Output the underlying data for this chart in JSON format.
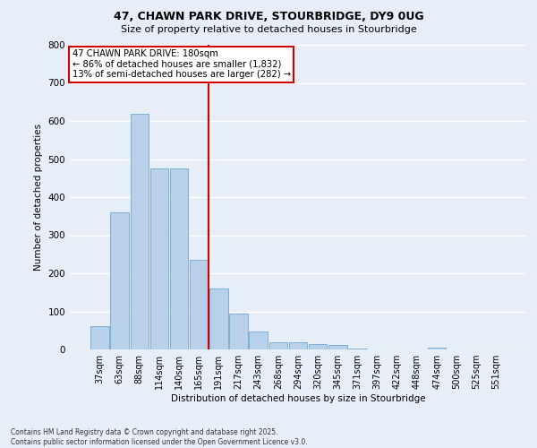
{
  "title_line1": "47, CHAWN PARK DRIVE, STOURBRIDGE, DY9 0UG",
  "title_line2": "Size of property relative to detached houses in Stourbridge",
  "xlabel": "Distribution of detached houses by size in Stourbridge",
  "ylabel": "Number of detached properties",
  "categories": [
    "37sqm",
    "63sqm",
    "88sqm",
    "114sqm",
    "140sqm",
    "165sqm",
    "191sqm",
    "217sqm",
    "243sqm",
    "268sqm",
    "294sqm",
    "320sqm",
    "345sqm",
    "371sqm",
    "397sqm",
    "422sqm",
    "448sqm",
    "474sqm",
    "500sqm",
    "525sqm",
    "551sqm"
  ],
  "values": [
    62,
    360,
    620,
    475,
    475,
    235,
    160,
    95,
    48,
    20,
    18,
    15,
    12,
    3,
    1,
    1,
    1,
    5,
    1,
    1,
    1
  ],
  "bar_color": "#b8d0ea",
  "bar_edge_color": "#7aafd4",
  "background_color": "#e8eef8",
  "grid_color": "#ffffff",
  "annotation_text_line1": "47 CHAWN PARK DRIVE: 180sqm",
  "annotation_text_line2": "← 86% of detached houses are smaller (1,832)",
  "annotation_text_line3": "13% of semi-detached houses are larger (282) →",
  "annotation_box_color": "#ffffff",
  "annotation_box_edge": "#cc0000",
  "vline_color": "#cc0000",
  "vline_x": 5.5,
  "ylim": [
    0,
    800
  ],
  "yticks": [
    0,
    100,
    200,
    300,
    400,
    500,
    600,
    700,
    800
  ],
  "footnote_line1": "Contains HM Land Registry data © Crown copyright and database right 2025.",
  "footnote_line2": "Contains public sector information licensed under the Open Government Licence v3.0."
}
